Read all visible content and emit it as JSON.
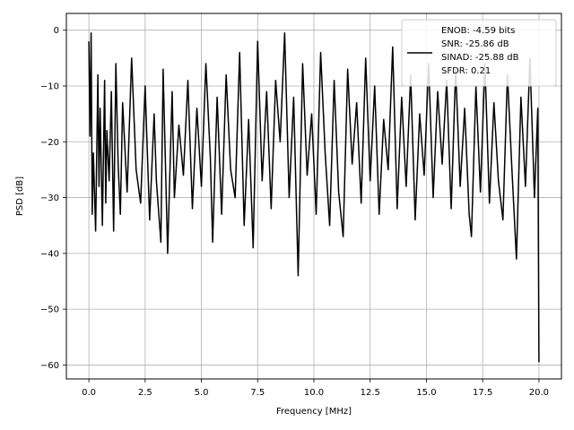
{
  "chart_data": {
    "type": "line",
    "title": "",
    "xlabel": "Frequency [MHz]",
    "ylabel": "PSD [dB]",
    "xlim": [
      -1.0,
      21.0
    ],
    "ylim": [
      -62.5,
      3.0
    ],
    "xticks": [
      0.0,
      2.5,
      5.0,
      7.5,
      10.0,
      12.5,
      15.0,
      17.5,
      20.0
    ],
    "xtick_labels": [
      "0.0",
      "2.5",
      "5.0",
      "7.5",
      "10.0",
      "12.5",
      "15.0",
      "17.5",
      "20.0"
    ],
    "yticks": [
      0,
      -10,
      -20,
      -30,
      -40,
      -50,
      -60
    ],
    "ytick_labels": [
      "0",
      "−10",
      "−20",
      "−30",
      "−40",
      "−50",
      "−60"
    ],
    "grid": true,
    "legend_position": "top-right",
    "legend_entries": [
      "ENOB: -4.59 bits\nSNR: -25.86 dB\nSINAD: -25.88 dB\nSFDR: 0.21"
    ],
    "series": [
      {
        "color": "#000000",
        "x": [
          0.0,
          0.05,
          0.1,
          0.15,
          0.2,
          0.3,
          0.4,
          0.45,
          0.5,
          0.6,
          0.7,
          0.75,
          0.8,
          0.9,
          1.0,
          1.1,
          1.2,
          1.3,
          1.4,
          1.5,
          1.7,
          1.9,
          2.1,
          2.3,
          2.5,
          2.7,
          2.9,
          3.0,
          3.2,
          3.3,
          3.5,
          3.7,
          3.8,
          4.0,
          4.2,
          4.4,
          4.6,
          4.8,
          5.0,
          5.2,
          5.4,
          5.5,
          5.7,
          5.9,
          6.1,
          6.3,
          6.5,
          6.7,
          6.9,
          7.1,
          7.3,
          7.5,
          7.7,
          7.9,
          8.1,
          8.3,
          8.5,
          8.7,
          8.9,
          9.1,
          9.3,
          9.5,
          9.7,
          9.9,
          10.1,
          10.3,
          10.5,
          10.7,
          10.9,
          11.1,
          11.3,
          11.5,
          11.7,
          11.9,
          12.1,
          12.3,
          12.5,
          12.7,
          12.9,
          13.1,
          13.3,
          13.5,
          13.7,
          13.9,
          14.1,
          14.3,
          14.5,
          14.7,
          14.9,
          15.1,
          15.3,
          15.5,
          15.7,
          15.9,
          16.1,
          16.3,
          16.5,
          16.7,
          16.9,
          17.0,
          17.2,
          17.4,
          17.6,
          17.8,
          18.0,
          18.2,
          18.4,
          18.6,
          18.8,
          19.0,
          19.2,
          19.4,
          19.6,
          19.8,
          19.95,
          20.0
        ],
        "y": [
          -2,
          -19,
          -0.5,
          -33,
          -22,
          -36,
          -8,
          -28,
          -14,
          -35,
          -9,
          -31,
          -18,
          -27,
          -11,
          -36,
          -6,
          -24,
          -33,
          -13,
          -29,
          -5,
          -25,
          -31,
          -10,
          -34,
          -15,
          -27,
          -38,
          -7,
          -40,
          -11,
          -30,
          -17,
          -26,
          -9,
          -32,
          -14,
          -28,
          -6,
          -23,
          -38,
          -12,
          -33,
          -8,
          -25,
          -30,
          -4,
          -35,
          -16,
          -39,
          -2,
          -27,
          -11,
          -32,
          -9,
          -20,
          -0.5,
          -30,
          -12,
          -44,
          -6,
          -26,
          -15,
          -33,
          -4,
          -22,
          -35,
          -9,
          -29,
          -37,
          -7,
          -24,
          -13,
          -31,
          -5,
          -27,
          -10,
          -33,
          -16,
          -25,
          -3,
          -32,
          -12,
          -28,
          -8,
          -34,
          -15,
          -26,
          -6,
          -30,
          -11,
          -24,
          -9,
          -32,
          -7,
          -28,
          -14,
          -33,
          -37,
          -10,
          -29,
          -6,
          -31,
          -13,
          -27,
          -34,
          -8,
          -25,
          -41,
          -12,
          -28,
          -5,
          -30,
          -14,
          -59.5
        ]
      }
    ]
  }
}
